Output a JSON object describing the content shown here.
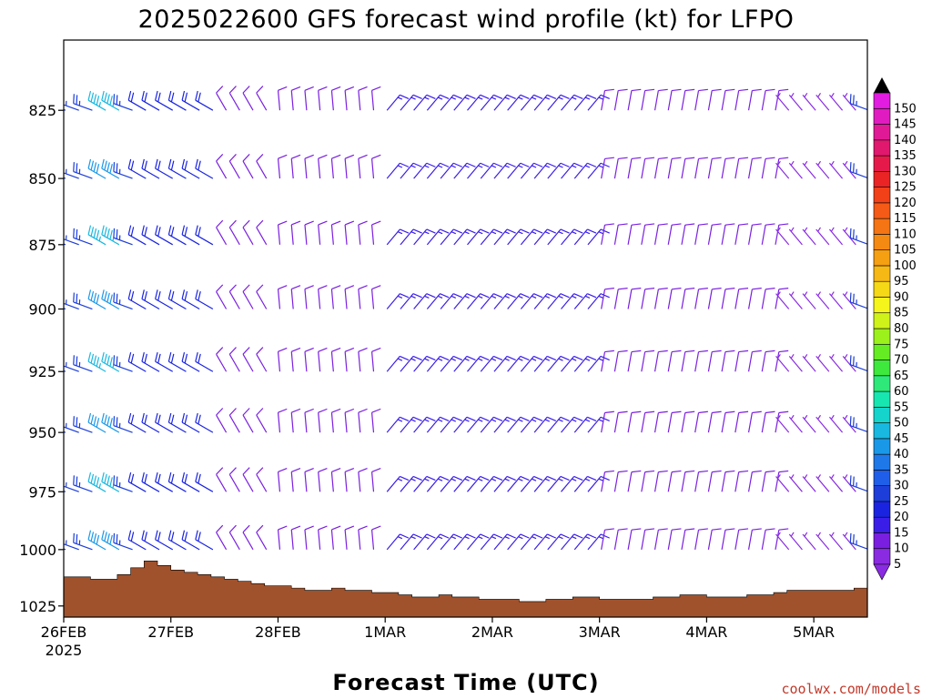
{
  "chart_data": {
    "type": "wind-barb-time-height",
    "title": "2025022600 GFS forecast wind profile (kt) for LFPO",
    "xlabel": "Forecast Time (UTC)",
    "ylabel": "",
    "credit": "coolwx.com/models",
    "x_ticks": [
      "26FEB",
      "27FEB",
      "28FEB",
      "1MAR",
      "2MAR",
      "3MAR",
      "4MAR",
      "5MAR"
    ],
    "x_tick_year": "2025",
    "x_tick_hours": [
      0,
      24,
      48,
      72,
      96,
      120,
      144,
      168
    ],
    "x_range_hours": [
      0,
      180
    ],
    "y_ticks": [
      825,
      850,
      875,
      900,
      925,
      950,
      975,
      1000,
      1025
    ],
    "y_axis": "pressure (hPa), reversed, log scale",
    "y_range": [
      800,
      1030
    ],
    "barb_levels": [
      800,
      825,
      850,
      875,
      900,
      925,
      950,
      975,
      1000,
      1025
    ],
    "time_step_hours": 3,
    "surface_pressure_hpa": [
      {
        "hour": 0,
        "p": 1012
      },
      {
        "hour": 9,
        "p": 1013
      },
      {
        "hour": 12,
        "p": 1011
      },
      {
        "hour": 15,
        "p": 1008
      },
      {
        "hour": 18,
        "p": 1005
      },
      {
        "hour": 21,
        "p": 1007
      },
      {
        "hour": 24,
        "p": 1009
      },
      {
        "hour": 36,
        "p": 1013
      },
      {
        "hour": 42,
        "p": 1015
      },
      {
        "hour": 48,
        "p": 1016
      },
      {
        "hour": 54,
        "p": 1018
      },
      {
        "hour": 60,
        "p": 1017
      },
      {
        "hour": 66,
        "p": 1018
      },
      {
        "hour": 72,
        "p": 1019
      },
      {
        "hour": 78,
        "p": 1021
      },
      {
        "hour": 84,
        "p": 1020
      },
      {
        "hour": 90,
        "p": 1021
      },
      {
        "hour": 96,
        "p": 1022
      },
      {
        "hour": 105,
        "p": 1023
      },
      {
        "hour": 114,
        "p": 1021
      },
      {
        "hour": 126,
        "p": 1022
      },
      {
        "hour": 138,
        "p": 1020
      },
      {
        "hour": 150,
        "p": 1021
      },
      {
        "hour": 162,
        "p": 1018
      },
      {
        "hour": 174,
        "p": 1018
      },
      {
        "hour": 180,
        "p": 1015
      }
    ],
    "wind_regimes": [
      {
        "from_hour": 0,
        "to_hour": 18,
        "direction_deg": 290,
        "speed_kt": 25
      },
      {
        "from_hour": 9,
        "to_hour": 15,
        "direction_deg": 300,
        "speed_kt": 40
      },
      {
        "from_hour": 18,
        "to_hour": 36,
        "direction_deg": 300,
        "speed_kt": 20
      },
      {
        "from_hour": 36,
        "to_hour": 48,
        "direction_deg": 330,
        "speed_kt": 10
      },
      {
        "from_hour": 48,
        "to_hour": 72,
        "direction_deg": 355,
        "speed_kt": 10
      },
      {
        "from_hour": 72,
        "to_hour": 120,
        "direction_deg": 40,
        "speed_kt": 15
      },
      {
        "from_hour": 120,
        "to_hour": 162,
        "direction_deg": 10,
        "speed_kt": 10
      },
      {
        "from_hour": 162,
        "to_hour": 180,
        "direction_deg": 320,
        "speed_kt": 7
      }
    ],
    "colorbar": {
      "levels": [
        5,
        10,
        15,
        20,
        25,
        30,
        35,
        40,
        45,
        50,
        55,
        60,
        65,
        70,
        75,
        80,
        85,
        90,
        95,
        100,
        105,
        110,
        115,
        120,
        125,
        130,
        135,
        140,
        145,
        150
      ],
      "colors": [
        "#8a2be2",
        "#7a1fe0",
        "#3a1ee8",
        "#1a24e0",
        "#1d3ed9",
        "#1f5ee8",
        "#1f78e8",
        "#1a98e8",
        "#18b8e0",
        "#15d4cc",
        "#18e6b0",
        "#2ee87a",
        "#3ee83c",
        "#66ec22",
        "#9cf01c",
        "#cff21a",
        "#f5f51c",
        "#f5d816",
        "#f5b814",
        "#f59f12",
        "#f58a12",
        "#f57414",
        "#f55a16",
        "#f24018",
        "#ea2424",
        "#e61a4a",
        "#e0186e",
        "#e01a96",
        "#e01cc0",
        "#e21ce0"
      ],
      "ticks": [
        "5",
        "10",
        "15",
        "20",
        "25",
        "30",
        "35",
        "40",
        "45",
        "50",
        "55",
        "60",
        "65",
        "70",
        "75",
        "80",
        "85",
        "90",
        "95",
        "100",
        "105",
        "110",
        "115",
        "120",
        "125",
        "130",
        "135",
        "140",
        "145",
        "150"
      ]
    },
    "colors": {
      "terrain": "#a0522d",
      "frame": "#000000"
    }
  }
}
